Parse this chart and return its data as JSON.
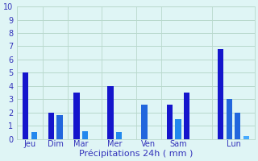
{
  "bars": [
    {
      "x": 1,
      "height": 5.0,
      "color": "#1515cc"
    },
    {
      "x": 2,
      "height": 0.5,
      "color": "#2288ee"
    },
    {
      "x": 4,
      "height": 2.0,
      "color": "#1515cc"
    },
    {
      "x": 5,
      "height": 1.8,
      "color": "#2266dd"
    },
    {
      "x": 7,
      "height": 3.5,
      "color": "#1515cc"
    },
    {
      "x": 8,
      "height": 0.6,
      "color": "#2288ee"
    },
    {
      "x": 11,
      "height": 4.0,
      "color": "#1515cc"
    },
    {
      "x": 12,
      "height": 0.5,
      "color": "#2288ee"
    },
    {
      "x": 15,
      "height": 2.6,
      "color": "#2266dd"
    },
    {
      "x": 18,
      "height": 2.6,
      "color": "#1515cc"
    },
    {
      "x": 19,
      "height": 1.5,
      "color": "#2288ee"
    },
    {
      "x": 20,
      "height": 3.5,
      "color": "#1515cc"
    },
    {
      "x": 24,
      "height": 6.8,
      "color": "#1515cc"
    },
    {
      "x": 25,
      "height": 3.0,
      "color": "#2266dd"
    },
    {
      "x": 26,
      "height": 2.0,
      "color": "#2266dd"
    },
    {
      "x": 27,
      "height": 0.2,
      "color": "#44aaff"
    }
  ],
  "bar_width": 0.7,
  "separators": [
    0,
    3,
    6,
    10,
    14,
    17,
    23,
    28
  ],
  "day_labels": [
    {
      "label": "Jeu",
      "x": 1.5
    },
    {
      "label": "Dim",
      "x": 4.5
    },
    {
      "label": "Mar",
      "x": 7.5
    },
    {
      "label": "Mer",
      "x": 11.5
    },
    {
      "label": "Ven",
      "x": 15.5
    },
    {
      "label": "Sam",
      "x": 19.0
    },
    {
      "label": "Lun",
      "x": 25.5
    }
  ],
  "xlabel": "Précipitations 24h ( mm )",
  "ylim": [
    0,
    10
  ],
  "yticks": [
    0,
    1,
    2,
    3,
    4,
    5,
    6,
    7,
    8,
    9,
    10
  ],
  "xlim": [
    0,
    28
  ],
  "bg_color": "#dff5f5",
  "grid_color": "#b8d8cc",
  "tick_color": "#3333bb",
  "label_color": "#3333bb"
}
